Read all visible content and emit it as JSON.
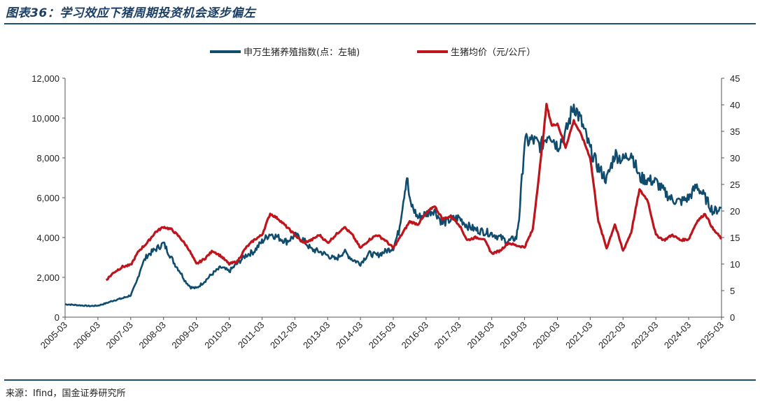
{
  "title": "图表36：学习效应下猪周期投资机会逐步偏左",
  "source": "来源：Ifind，国金证券研究所",
  "chart_data": {
    "type": "line",
    "legend": {
      "placement": "top-center"
    },
    "x_range": [
      "2005-03",
      "2025-03"
    ],
    "x_tick_labels": [
      "2005-03",
      "2006-03",
      "2007-03",
      "2008-03",
      "2009-03",
      "2010-03",
      "2011-03",
      "2012-03",
      "2013-03",
      "2014-03",
      "2015-03",
      "2016-03",
      "2017-03",
      "2018-03",
      "2019-03",
      "2020-03",
      "2021-03",
      "2022-03",
      "2023-03",
      "2024-03",
      "2025-03"
    ],
    "y_left": {
      "range": [
        0,
        12000
      ],
      "ticks": [
        "0",
        "2,000",
        "4,000",
        "6,000",
        "8,000",
        "10,000",
        "12,000"
      ]
    },
    "y_right": {
      "range": [
        0,
        45
      ],
      "ticks": [
        "0",
        "5",
        "10",
        "15",
        "20",
        "25",
        "30",
        "35",
        "40",
        "45"
      ]
    },
    "grid": false,
    "series": [
      {
        "name": "申万生猪养殖指数(点：左轴)",
        "axis": "left",
        "color": "#0f4c6e",
        "points": [
          [
            "2005-03",
            650
          ],
          [
            "2005-08",
            600
          ],
          [
            "2005-12",
            560
          ],
          [
            "2006-03",
            580
          ],
          [
            "2006-06",
            700
          ],
          [
            "2006-09",
            850
          ],
          [
            "2006-12",
            950
          ],
          [
            "2007-03",
            1100
          ],
          [
            "2007-05",
            1700
          ],
          [
            "2007-07",
            2600
          ],
          [
            "2007-09",
            3100
          ],
          [
            "2007-11",
            3300
          ],
          [
            "2008-01",
            3500
          ],
          [
            "2008-03",
            3700
          ],
          [
            "2008-05",
            3200
          ],
          [
            "2008-07",
            2700
          ],
          [
            "2008-09",
            2300
          ],
          [
            "2008-11",
            1800
          ],
          [
            "2009-01",
            1500
          ],
          [
            "2009-03",
            1450
          ],
          [
            "2009-06",
            1800
          ],
          [
            "2009-09",
            2200
          ],
          [
            "2009-12",
            2500
          ],
          [
            "2010-03",
            2300
          ],
          [
            "2010-06",
            2700
          ],
          [
            "2010-09",
            3100
          ],
          [
            "2010-12",
            3300
          ],
          [
            "2011-03",
            3800
          ],
          [
            "2011-06",
            4200
          ],
          [
            "2011-09",
            4000
          ],
          [
            "2011-12",
            3800
          ],
          [
            "2012-03",
            4100
          ],
          [
            "2012-06",
            3900
          ],
          [
            "2012-09",
            3400
          ],
          [
            "2012-12",
            3300
          ],
          [
            "2013-03",
            3100
          ],
          [
            "2013-06",
            2900
          ],
          [
            "2013-09",
            3300
          ],
          [
            "2013-12",
            2900
          ],
          [
            "2014-03",
            2700
          ],
          [
            "2014-06",
            3200
          ],
          [
            "2014-09",
            3100
          ],
          [
            "2014-12",
            3300
          ],
          [
            "2015-03",
            3500
          ],
          [
            "2015-05",
            4300
          ],
          [
            "2015-07",
            6200
          ],
          [
            "2015-08",
            7100
          ],
          [
            "2015-09",
            5800
          ],
          [
            "2015-12",
            5000
          ],
          [
            "2016-03",
            5200
          ],
          [
            "2016-06",
            5400
          ],
          [
            "2016-09",
            4700
          ],
          [
            "2016-12",
            4900
          ],
          [
            "2017-03",
            5000
          ],
          [
            "2017-06",
            4600
          ],
          [
            "2017-09",
            4400
          ],
          [
            "2017-12",
            4300
          ],
          [
            "2018-03",
            4200
          ],
          [
            "2018-06",
            4000
          ],
          [
            "2018-09",
            3800
          ],
          [
            "2018-12",
            4000
          ],
          [
            "2019-01",
            5000
          ],
          [
            "2019-03",
            8800
          ],
          [
            "2019-06",
            8900
          ],
          [
            "2019-09",
            8600
          ],
          [
            "2019-12",
            9300
          ],
          [
            "2020-03",
            8600
          ],
          [
            "2020-06",
            9200
          ],
          [
            "2020-09",
            10700
          ],
          [
            "2020-12",
            9700
          ],
          [
            "2021-03",
            8400
          ],
          [
            "2021-06",
            7500
          ],
          [
            "2021-09",
            6900
          ],
          [
            "2021-12",
            8200
          ],
          [
            "2022-03",
            7900
          ],
          [
            "2022-06",
            8300
          ],
          [
            "2022-09",
            7000
          ],
          [
            "2022-12",
            6900
          ],
          [
            "2023-03",
            6800
          ],
          [
            "2023-06",
            6300
          ],
          [
            "2023-09",
            5900
          ],
          [
            "2023-12",
            5800
          ],
          [
            "2024-03",
            6000
          ],
          [
            "2024-06",
            6600
          ],
          [
            "2024-09",
            6000
          ],
          [
            "2024-12",
            5300
          ],
          [
            "2025-03",
            5500
          ]
        ]
      },
      {
        "name": "生猪均价（元/公斤）",
        "axis": "right",
        "color": "#c0141c",
        "points": [
          [
            "2006-06",
            7
          ],
          [
            "2006-09",
            8.5
          ],
          [
            "2006-12",
            9.5
          ],
          [
            "2007-03",
            9.8
          ],
          [
            "2007-06",
            12.5
          ],
          [
            "2007-09",
            14
          ],
          [
            "2007-12",
            16
          ],
          [
            "2008-03",
            17
          ],
          [
            "2008-06",
            16.5
          ],
          [
            "2008-09",
            15
          ],
          [
            "2008-12",
            13
          ],
          [
            "2009-03",
            10
          ],
          [
            "2009-06",
            11
          ],
          [
            "2009-09",
            12.5
          ],
          [
            "2009-12",
            11.5
          ],
          [
            "2010-03",
            10
          ],
          [
            "2010-06",
            10.5
          ],
          [
            "2010-09",
            13
          ],
          [
            "2010-12",
            14.5
          ],
          [
            "2011-03",
            15.5
          ],
          [
            "2011-06",
            19.5
          ],
          [
            "2011-09",
            18.5
          ],
          [
            "2011-12",
            17
          ],
          [
            "2012-03",
            15.5
          ],
          [
            "2012-06",
            14
          ],
          [
            "2012-09",
            14.5
          ],
          [
            "2012-12",
            15.5
          ],
          [
            "2013-03",
            14
          ],
          [
            "2013-06",
            15.5
          ],
          [
            "2013-09",
            17
          ],
          [
            "2013-12",
            15.5
          ],
          [
            "2014-03",
            13
          ],
          [
            "2014-06",
            14.5
          ],
          [
            "2014-09",
            15.5
          ],
          [
            "2014-12",
            14.5
          ],
          [
            "2015-03",
            13
          ],
          [
            "2015-06",
            15.5
          ],
          [
            "2015-09",
            18
          ],
          [
            "2015-12",
            17.5
          ],
          [
            "2016-03",
            19.5
          ],
          [
            "2016-06",
            21
          ],
          [
            "2016-09",
            18.5
          ],
          [
            "2016-12",
            19
          ],
          [
            "2017-03",
            17.5
          ],
          [
            "2017-06",
            14.5
          ],
          [
            "2017-09",
            15
          ],
          [
            "2017-12",
            14.8
          ],
          [
            "2018-03",
            12
          ],
          [
            "2018-06",
            12.5
          ],
          [
            "2018-09",
            14
          ],
          [
            "2018-12",
            13.5
          ],
          [
            "2019-03",
            13.2
          ],
          [
            "2019-06",
            16.5
          ],
          [
            "2019-09",
            30
          ],
          [
            "2019-11",
            40
          ],
          [
            "2020-01",
            36
          ],
          [
            "2020-03",
            36.5
          ],
          [
            "2020-06",
            32
          ],
          [
            "2020-09",
            37
          ],
          [
            "2020-12",
            34
          ],
          [
            "2021-03",
            30
          ],
          [
            "2021-06",
            18
          ],
          [
            "2021-09",
            13
          ],
          [
            "2021-12",
            17.5
          ],
          [
            "2022-03",
            12.5
          ],
          [
            "2022-06",
            16
          ],
          [
            "2022-09",
            24
          ],
          [
            "2022-12",
            22
          ],
          [
            "2023-03",
            15.5
          ],
          [
            "2023-06",
            14.5
          ],
          [
            "2023-09",
            15.5
          ],
          [
            "2023-12",
            14.5
          ],
          [
            "2024-03",
            14.7
          ],
          [
            "2024-06",
            18
          ],
          [
            "2024-09",
            19.5
          ],
          [
            "2024-12",
            16.5
          ],
          [
            "2025-03",
            14.8
          ]
        ]
      }
    ]
  }
}
